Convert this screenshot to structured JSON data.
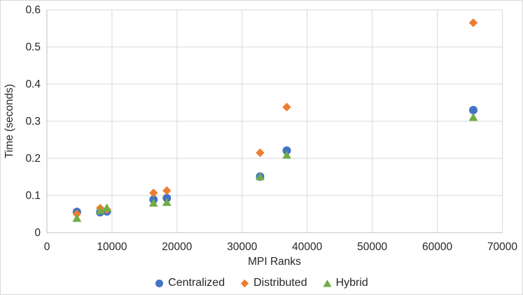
{
  "chart_data": {
    "type": "scatter",
    "title": "",
    "xlabel": "MPI Ranks",
    "ylabel": "Time (seconds)",
    "xlim": [
      0,
      70000
    ],
    "ylim": [
      0,
      0.6
    ],
    "x_tick_labels": [
      "0",
      "10000",
      "20000",
      "30000",
      "40000",
      "50000",
      "60000",
      "70000"
    ],
    "y_tick_labels": [
      "0",
      "0.1",
      "0.2",
      "0.3",
      "0.4",
      "0.5",
      "0.6"
    ],
    "grid": true,
    "legend_position": "bottom-center",
    "x": [
      4608,
      8192,
      9216,
      16384,
      18432,
      32768,
      36864,
      65536
    ],
    "series": [
      {
        "name": "Centralized",
        "marker": "circle",
        "color": "#4472C4",
        "values": [
          0.056,
          0.055,
          0.057,
          0.089,
          0.093,
          0.151,
          0.221,
          0.33
        ]
      },
      {
        "name": "Distributed",
        "marker": "diamond",
        "color": "#ED7D31",
        "values": [
          0.05,
          0.066,
          0.062,
          0.107,
          0.113,
          0.215,
          0.338,
          0.565
        ]
      },
      {
        "name": "Hybrid",
        "marker": "triangle",
        "color": "#70AD47",
        "values": [
          0.038,
          0.059,
          0.066,
          0.079,
          0.081,
          0.15,
          0.208,
          0.31
        ]
      }
    ]
  },
  "colors": {
    "gridline": "#d9d9d9",
    "axis_line": "#bfbfbf",
    "tick_text": "#262626",
    "background": "#ffffff",
    "frame_border": "#d9d9d9"
  }
}
